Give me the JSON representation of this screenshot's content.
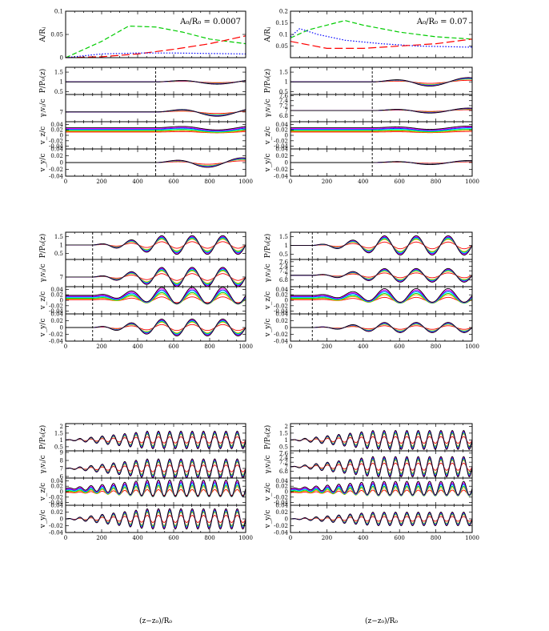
{
  "figure": {
    "xlabel": "(z−z₀)/R₀",
    "annotations": [
      "A₀/R₀ = 0.0007",
      "A₀/R₀ = 0.07"
    ],
    "line_colors": [
      "#000000",
      "#ff00ff",
      "#0000ff",
      "#00ffff",
      "#00cc00",
      "#ffaa00",
      "#ff0000"
    ]
  },
  "chart_data": [
    {
      "type": "line",
      "panel": "column-1-row-1",
      "ylabel": "A/Rⱼ",
      "xlim": [
        0,
        1000
      ],
      "ylim": [
        0,
        0.1
      ],
      "y_ticks": [
        "0",
        "0.05",
        "0.1"
      ],
      "series": [
        {
          "color": "#00cc00",
          "dash": "dashed",
          "x": [
            0,
            200,
            350,
            500,
            650,
            800,
            1000
          ],
          "y": [
            0,
            0.035,
            0.068,
            0.066,
            0.055,
            0.04,
            0.03
          ]
        },
        {
          "color": "#ff0000",
          "dash": "long-dashed",
          "x": [
            0,
            200,
            400,
            600,
            800,
            1000
          ],
          "y": [
            0,
            0.002,
            0.008,
            0.018,
            0.03,
            0.047
          ]
        },
        {
          "color": "#0000ff",
          "dash": "dotted",
          "x": [
            0,
            200,
            400,
            600,
            800,
            1000
          ],
          "y": [
            0,
            0.008,
            0.01,
            0.01,
            0.009,
            0.008
          ]
        }
      ]
    },
    {
      "type": "line",
      "panel": "column-2-row-1",
      "ylabel": "A/Rⱼ",
      "xlim": [
        0,
        1000
      ],
      "ylim": [
        0,
        0.2
      ],
      "y_ticks": [
        "0.05",
        "0.1",
        "0.15",
        "0.2"
      ],
      "series": [
        {
          "color": "#00cc00",
          "dash": "dashed",
          "x": [
            0,
            100,
            200,
            300,
            400,
            600,
            800,
            1000
          ],
          "y": [
            0.085,
            0.12,
            0.14,
            0.16,
            0.14,
            0.11,
            0.09,
            0.08
          ]
        },
        {
          "color": "#0000ff",
          "dash": "dotted",
          "x": [
            0,
            50,
            150,
            300,
            500,
            700,
            1000
          ],
          "y": [
            0.09,
            0.125,
            0.1,
            0.075,
            0.06,
            0.05,
            0.045
          ]
        },
        {
          "color": "#ff0000",
          "dash": "long-dashed",
          "x": [
            0,
            100,
            200,
            400,
            600,
            800,
            1000
          ],
          "y": [
            0.07,
            0.055,
            0.04,
            0.04,
            0.05,
            0.06,
            0.08
          ]
        }
      ]
    },
    {
      "type": "line",
      "panel": "column-1-block-1-pressure",
      "ylabel": "P/P₀(z)",
      "xlim": [
        0,
        1000
      ],
      "ylim": [
        0.35,
        1.75
      ],
      "y_ticks": [
        "0.5",
        "1",
        "1.5"
      ],
      "vline": 500,
      "perturbation": {
        "onset_x": 500,
        "cycles": 1.1,
        "max_amplitude": 0.12,
        "center": 1
      }
    },
    {
      "type": "line",
      "panel": "column-1-block-1-lorentz",
      "ylabel": "γⱼvⱼ/c",
      "xlim": [
        0,
        1000
      ],
      "ylim": [
        6.5,
        7.9
      ],
      "y_ticks": [
        "7"
      ],
      "vline": 500,
      "perturbation": {
        "onset_x": 500,
        "cycles": 1.1,
        "max_amplitude": 0.22,
        "center": 7
      }
    },
    {
      "type": "line",
      "panel": "column-1-block-1-vz",
      "ylabel": "v_z/c",
      "xlim": [
        0,
        1000
      ],
      "ylim": [
        -0.05,
        0.05
      ],
      "y_ticks": [
        "-0.04",
        "-0.02",
        "0",
        "0.02",
        "0.04"
      ],
      "vline": 500,
      "perturbation": {
        "onset_x": 500,
        "cycles": 1.1,
        "max_amplitude": 0.008,
        "center": 0.02,
        "offset_spread": 0.016
      }
    },
    {
      "type": "line",
      "panel": "column-1-block-1-vy",
      "ylabel": "v_y/c",
      "xlim": [
        0,
        1000
      ],
      "ylim": [
        -0.04,
        0.04
      ],
      "y_ticks": [
        "-0.04",
        "-0.02",
        "0",
        "0.02",
        "0.04"
      ],
      "x_ticks": [
        "0",
        "200",
        "400",
        "600",
        "800",
        "1000"
      ],
      "vline": 500,
      "perturbation": {
        "onset_x": 500,
        "cycles": 1.3,
        "max_amplitude": 0.014,
        "center": 0
      }
    },
    {
      "type": "line",
      "panel": "column-2-block-1-pressure",
      "ylabel": "P/P₀(z)",
      "xlim": [
        0,
        1000
      ],
      "ylim": [
        0.35,
        1.75
      ],
      "y_ticks": [
        "0.5",
        "1",
        "1.5"
      ],
      "vline": 450,
      "perturbation": {
        "onset_x": 450,
        "cycles": 1.3,
        "max_amplitude": 0.22,
        "center": 1
      }
    },
    {
      "type": "line",
      "panel": "column-2-block-1-lorentz",
      "ylabel": "γⱼvⱼ/c",
      "xlim": [
        0,
        1000
      ],
      "ylim": [
        6.55,
        7.65
      ],
      "y_ticks": [
        "6.8",
        "7",
        "7.2",
        "7.4",
        "7.6"
      ],
      "vline": 450,
      "perturbation": {
        "onset_x": 450,
        "cycles": 1.3,
        "max_amplitude": 0.1,
        "center": 7
      }
    },
    {
      "type": "line",
      "panel": "column-2-block-1-vz",
      "ylabel": "v_z/c",
      "xlim": [
        0,
        1000
      ],
      "ylim": [
        -0.05,
        0.05
      ],
      "y_ticks": [
        "-0.04",
        "-0.02",
        "0",
        "0.02",
        "0.04"
      ],
      "vline": 450,
      "perturbation": {
        "onset_x": 450,
        "cycles": 1.3,
        "max_amplitude": 0.006,
        "center": 0.02,
        "offset_spread": 0.016
      }
    },
    {
      "type": "line",
      "panel": "column-2-block-1-vy",
      "ylabel": "v_y/c",
      "xlim": [
        0,
        1000
      ],
      "ylim": [
        -0.04,
        0.04
      ],
      "y_ticks": [
        "-0.04",
        "-0.02",
        "0",
        "0.02",
        "0.04"
      ],
      "x_ticks": [
        "0",
        "200",
        "400",
        "600",
        "800",
        "1000"
      ],
      "vline": 450,
      "perturbation": {
        "onset_x": 450,
        "cycles": 1.3,
        "max_amplitude": 0.006,
        "center": 0
      }
    },
    {
      "type": "line",
      "panel": "column-1-block-2-pressure",
      "ylabel": "P/P₀(z)",
      "xlim": [
        0,
        1000
      ],
      "ylim": [
        0.15,
        1.75
      ],
      "y_ticks": [
        "0.5",
        "1",
        "1.5"
      ],
      "vline": 150,
      "perturbation": {
        "onset_x": 150,
        "cycles": 5,
        "max_amplitude": 0.55,
        "center": 1
      }
    },
    {
      "type": "line",
      "panel": "column-1-block-2-lorentz",
      "ylabel": "γⱼvⱼ/c",
      "xlim": [
        0,
        1000
      ],
      "ylim": [
        6.45,
        8.0
      ],
      "y_ticks": [
        "7"
      ],
      "vline": 150,
      "perturbation": {
        "onset_x": 150,
        "cycles": 5,
        "max_amplitude": 0.55,
        "center": 7
      }
    },
    {
      "type": "line",
      "panel": "column-1-block-2-vz",
      "ylabel": "v_z/c",
      "xlim": [
        0,
        1000
      ],
      "ylim": [
        -0.05,
        0.05
      ],
      "y_ticks": [
        "-0.04",
        "-0.02",
        "0",
        "0.02",
        "0.04"
      ],
      "vline": 150,
      "perturbation": {
        "onset_x": 150,
        "cycles": 5,
        "max_amplitude": 0.03,
        "center": 0.01,
        "offset_spread": 0.016
      }
    },
    {
      "type": "line",
      "panel": "column-1-block-2-vy",
      "ylabel": "v_y/c",
      "xlim": [
        0,
        1000
      ],
      "ylim": [
        -0.04,
        0.04
      ],
      "y_ticks": [
        "-0.04",
        "-0.02",
        "0",
        "0.02",
        "0.04"
      ],
      "x_ticks": [
        "0",
        "200",
        "400",
        "600",
        "800",
        "1000"
      ],
      "vline": 150,
      "perturbation": {
        "onset_x": 150,
        "cycles": 5,
        "max_amplitude": 0.025,
        "center": 0
      }
    },
    {
      "type": "line",
      "panel": "column-2-block-2-pressure",
      "ylabel": "P/P₀(z)",
      "xlim": [
        0,
        1000
      ],
      "ylim": [
        0.2,
        1.75
      ],
      "y_ticks": [
        "0.5",
        "1",
        "1.5"
      ],
      "vline": 120,
      "perturbation": {
        "onset_x": 120,
        "cycles": 5,
        "max_amplitude": 0.55,
        "center": 1
      }
    },
    {
      "type": "line",
      "panel": "column-2-block-2-lorentz",
      "ylabel": "γⱼvⱼ/c",
      "xlim": [
        0,
        1000
      ],
      "ylim": [
        6.5,
        7.7
      ],
      "y_ticks": [
        "6.8",
        "7",
        "7.2",
        "7.4",
        "7.6"
      ],
      "vline": 120,
      "perturbation": {
        "onset_x": 120,
        "cycles": 5,
        "max_amplitude": 0.3,
        "center": 7
      }
    },
    {
      "type": "line",
      "panel": "column-2-block-2-vz",
      "ylabel": "v_z/c",
      "xlim": [
        0,
        1000
      ],
      "ylim": [
        -0.05,
        0.05
      ],
      "y_ticks": [
        "-0.04",
        "-0.02",
        "0",
        "0.02",
        "0.04"
      ],
      "vline": 120,
      "perturbation": {
        "onset_x": 120,
        "cycles": 5,
        "max_amplitude": 0.025,
        "center": 0.01,
        "offset_spread": 0.016
      }
    },
    {
      "type": "line",
      "panel": "column-2-block-2-vy",
      "ylabel": "v_y/c",
      "xlim": [
        0,
        1000
      ],
      "ylim": [
        -0.04,
        0.04
      ],
      "y_ticks": [
        "-0.04",
        "-0.02",
        "0",
        "0.02",
        "0.04"
      ],
      "x_ticks": [
        "0",
        "200",
        "400",
        "600",
        "800",
        "1000"
      ],
      "vline": 120,
      "perturbation": {
        "onset_x": 120,
        "cycles": 5,
        "max_amplitude": 0.015,
        "center": 0
      }
    },
    {
      "type": "line",
      "panel": "column-1-block-3-pressure",
      "ylabel": "P/P₀(z)",
      "xlim": [
        0,
        1000
      ],
      "ylim": [
        0.2,
        2.2
      ],
      "y_ticks": [
        "0.5",
        "1",
        "1.5",
        "2"
      ],
      "perturbation": {
        "onset_x": 0,
        "cycles": 16,
        "max_amplitude": 0.65,
        "center": 1
      }
    },
    {
      "type": "line",
      "panel": "column-1-block-3-lorentz",
      "ylabel": "γⱼvⱼ/c",
      "xlim": [
        0,
        1000
      ],
      "ylim": [
        5.8,
        9.2
      ],
      "y_ticks": [
        "6",
        "7",
        "8",
        "9"
      ],
      "perturbation": {
        "onset_x": 0,
        "cycles": 16,
        "max_amplitude": 1.2,
        "center": 7
      }
    },
    {
      "type": "line",
      "panel": "column-1-block-3-vz",
      "ylabel": "v_z/c",
      "xlim": [
        0,
        1000
      ],
      "ylim": [
        -0.05,
        0.05
      ],
      "y_ticks": [
        "-0.04",
        "-0.02",
        "0",
        "0.02",
        "0.04"
      ],
      "perturbation": {
        "onset_x": 0,
        "cycles": 16,
        "max_amplitude": 0.03,
        "center": 0.005,
        "offset_spread": 0.016
      }
    },
    {
      "type": "line",
      "panel": "column-1-block-3-vy",
      "ylabel": "v_y/c",
      "xlim": [
        0,
        1000
      ],
      "ylim": [
        -0.04,
        0.04
      ],
      "y_ticks": [
        "-0.04",
        "-0.02",
        "0",
        "0.02",
        "0.04"
      ],
      "x_ticks": [
        "0",
        "200",
        "400",
        "600",
        "800",
        "1000"
      ],
      "perturbation": {
        "onset_x": 0,
        "cycles": 16,
        "max_amplitude": 0.03,
        "center": 0
      }
    },
    {
      "type": "line",
      "panel": "column-2-block-3-pressure",
      "ylabel": "P/P₀(z)",
      "xlim": [
        0,
        1000
      ],
      "ylim": [
        0.2,
        2.2
      ],
      "y_ticks": [
        "0.5",
        "1",
        "1.5",
        "2"
      ],
      "perturbation": {
        "onset_x": 0,
        "cycles": 16,
        "max_amplitude": 0.7,
        "center": 1
      }
    },
    {
      "type": "line",
      "panel": "column-2-block-3-lorentz",
      "ylabel": "γⱼvⱼ/c",
      "xlim": [
        0,
        1000
      ],
      "ylim": [
        6.5,
        7.7
      ],
      "y_ticks": [
        "6.8",
        "7",
        "7.2",
        "7.4",
        "7.6"
      ],
      "perturbation": {
        "onset_x": 0,
        "cycles": 16,
        "max_amplitude": 0.45,
        "center": 7
      }
    },
    {
      "type": "line",
      "panel": "column-2-block-3-vz",
      "ylabel": "v_z/c",
      "xlim": [
        0,
        1000
      ],
      "ylim": [
        -0.05,
        0.05
      ],
      "y_ticks": [
        "-0.04",
        "-0.02",
        "0",
        "0.02",
        "0.04"
      ],
      "perturbation": {
        "onset_x": 0,
        "cycles": 16,
        "max_amplitude": 0.025,
        "center": 0.005,
        "offset_spread": 0.016
      }
    },
    {
      "type": "line",
      "panel": "column-2-block-3-vy",
      "ylabel": "v_y/c",
      "xlim": [
        0,
        1000
      ],
      "ylim": [
        -0.04,
        0.04
      ],
      "y_ticks": [
        "-0.04",
        "-0.02",
        "0",
        "0.02",
        "0.04"
      ],
      "x_ticks": [
        "0",
        "200",
        "400",
        "600",
        "800",
        "1000"
      ],
      "perturbation": {
        "onset_x": 0,
        "cycles": 16,
        "max_amplitude": 0.02,
        "center": 0
      }
    }
  ]
}
